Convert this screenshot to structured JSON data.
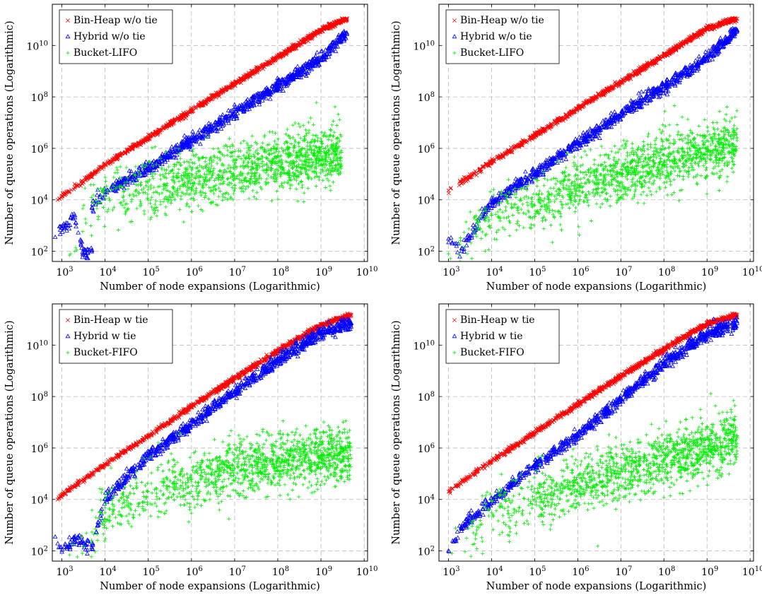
{
  "chart_data": [
    {
      "type": "scatter",
      "xlabel": "Number of node expansions (Logarithmic)",
      "ylabel": "Number of queue operations (Logarithmic)",
      "x_scale": "log",
      "y_scale": "log",
      "xlim": [
        600,
        12000000000
      ],
      "ylim": [
        40,
        400000000000
      ],
      "x_ticks": [
        3,
        4,
        5,
        6,
        7,
        8,
        9,
        10
      ],
      "y_ticks": [
        2,
        4,
        6,
        8,
        10
      ],
      "grid": true,
      "legend_position": "top-left",
      "series": [
        {
          "name": "Bin-Heap w/o tie",
          "color": "#ff0000",
          "marker": "x",
          "points": [
            [
              800,
              10000
            ],
            [
              1000,
              14000
            ],
            [
              2000,
              30000
            ],
            [
              5000,
              100000
            ],
            [
              10000,
              230000
            ],
            [
              100000,
              2600000
            ],
            [
              1000000,
              30000000
            ],
            [
              10000000,
              330000000
            ],
            [
              100000000,
              3500000000
            ],
            [
              1000000000,
              40000000000
            ],
            [
              4000000000,
              110000000000
            ]
          ]
        },
        {
          "name": "Hybrid w/o tie",
          "color": "#0000ff",
          "marker": "triangle",
          "points": [
            [
              700,
              350
            ],
            [
              1000,
              800
            ],
            [
              2000,
              2000
            ],
            [
              3000,
              90
            ],
            [
              5000,
              110
            ],
            [
              5000,
              5000
            ],
            [
              10000,
              20000
            ],
            [
              100000,
              160000
            ],
            [
              1000000,
              2100000
            ],
            [
              10000000,
              23000000
            ],
            [
              100000000,
              260000000
            ],
            [
              1000000000,
              3000000000
            ],
            [
              4000000000,
              30000000000
            ]
          ]
        },
        {
          "name": "Bucket-LIFO",
          "color": "#00ee00",
          "marker": "plus",
          "points": [
            [
              1500,
              70
            ],
            [
              2000,
              100
            ],
            [
              5000,
              8000
            ],
            [
              10000,
              15000
            ],
            [
              100000,
              25000
            ],
            [
              1000000,
              60000
            ],
            [
              10000000,
              150000
            ],
            [
              100000000,
              300000
            ],
            [
              1000000000,
              500000
            ],
            [
              3000000000,
              700000
            ]
          ]
        }
      ]
    },
    {
      "type": "scatter",
      "xlabel": "Number of node expansions (Logarithmic)",
      "ylabel": "Number of queue operations (Logarithmic)",
      "x_scale": "log",
      "y_scale": "log",
      "xlim": [
        600,
        12000000000
      ],
      "ylim": [
        40,
        400000000000
      ],
      "x_ticks": [
        3,
        4,
        5,
        6,
        7,
        8,
        9,
        10
      ],
      "y_ticks": [
        2,
        4,
        6,
        8,
        10
      ],
      "grid": true,
      "legend_position": "top-left",
      "series": [
        {
          "name": "Bin-Heap w/o tie",
          "color": "#ff0000",
          "marker": "x",
          "points": [
            [
              1000,
              23000
            ],
            [
              10000,
              300000
            ],
            [
              100000,
              3200000
            ],
            [
              1000000,
              35000000
            ],
            [
              10000000,
              380000000
            ],
            [
              100000000,
              4000000000
            ],
            [
              1000000000,
              45000000000
            ],
            [
              5000000000,
              110000000000
            ]
          ]
        },
        {
          "name": "Hybrid w/o tie",
          "color": "#0000ff",
          "marker": "triangle",
          "points": [
            [
              1000,
              300
            ],
            [
              2000,
              100
            ],
            [
              5000,
              1500
            ],
            [
              10000,
              8000
            ],
            [
              100000,
              100000
            ],
            [
              1000000,
              1500000
            ],
            [
              10000000,
              20000000
            ],
            [
              100000000,
              250000000
            ],
            [
              1000000000,
              3000000000
            ],
            [
              5000000000,
              40000000000
            ]
          ]
        },
        {
          "name": "Bucket-LIFO",
          "color": "#00ee00",
          "marker": "plus",
          "points": [
            [
              1000,
              80
            ],
            [
              5000,
              1000
            ],
            [
              10000,
              2500
            ],
            [
              100000,
              6000
            ],
            [
              1000000,
              30000
            ],
            [
              10000000,
              100000
            ],
            [
              100000000,
              300000
            ],
            [
              1000000000,
              800000
            ],
            [
              5000000000,
              2000000
            ]
          ]
        }
      ]
    },
    {
      "type": "scatter",
      "xlabel": "Number of node expansions (Logarithmic)",
      "ylabel": "Number of queue operations (Logarithmic)",
      "x_scale": "log",
      "y_scale": "log",
      "xlim": [
        600,
        12000000000
      ],
      "ylim": [
        40,
        400000000000
      ],
      "x_ticks": [
        3,
        4,
        5,
        6,
        7,
        8,
        9,
        10
      ],
      "y_ticks": [
        2,
        4,
        6,
        8,
        10
      ],
      "grid": true,
      "legend_position": "top-left",
      "series": [
        {
          "name": "Bin-Heap w tie",
          "color": "#ff0000",
          "marker": "x",
          "points": [
            [
              800,
              10000
            ],
            [
              1000,
              15000
            ],
            [
              10000,
              230000
            ],
            [
              100000,
              3000000
            ],
            [
              1000000,
              40000000
            ],
            [
              10000000,
              500000000
            ],
            [
              100000000,
              6000000000
            ],
            [
              1000000000,
              60000000000
            ],
            [
              5000000000,
              150000000000
            ]
          ]
        },
        {
          "name": "Hybrid w tie",
          "color": "#0000ff",
          "marker": "triangle",
          "points": [
            [
              700,
              350
            ],
            [
              1000,
              90
            ],
            [
              2000,
              300
            ],
            [
              5000,
              120
            ],
            [
              10000,
              10000
            ],
            [
              100000,
              500000
            ],
            [
              1000000,
              8000000
            ],
            [
              10000000,
              150000000
            ],
            [
              100000000,
              2500000000
            ],
            [
              1000000000,
              30000000000
            ],
            [
              5000000000,
              70000000000
            ]
          ]
        },
        {
          "name": "Bucket-FIFO",
          "color": "#00ee00",
          "marker": "plus",
          "points": [
            [
              1500,
              70
            ],
            [
              3000,
              80
            ],
            [
              10000,
              3000
            ],
            [
              100000,
              20000
            ],
            [
              1000000,
              50000
            ],
            [
              10000000,
              150000
            ],
            [
              100000000,
              300000
            ],
            [
              1000000000,
              500000
            ],
            [
              5000000000,
              400000
            ]
          ]
        }
      ]
    },
    {
      "type": "scatter",
      "xlabel": "Number of node expansions (Logarithmic)",
      "ylabel": "Number of queue operations (Logarithmic)",
      "x_scale": "log",
      "y_scale": "log",
      "xlim": [
        600,
        12000000000
      ],
      "ylim": [
        40,
        400000000000
      ],
      "x_ticks": [
        3,
        4,
        5,
        6,
        7,
        8,
        9,
        10
      ],
      "y_ticks": [
        2,
        4,
        6,
        8,
        10
      ],
      "grid": true,
      "legend_position": "top-left",
      "series": [
        {
          "name": "Bin-Heap w tie",
          "color": "#ff0000",
          "marker": "x",
          "points": [
            [
              1000,
              20000
            ],
            [
              10000,
              300000
            ],
            [
              100000,
              4000000
            ],
            [
              1000000,
              50000000
            ],
            [
              10000000,
              600000000
            ],
            [
              100000000,
              7000000000
            ],
            [
              1000000000,
              70000000000
            ],
            [
              5000000000,
              150000000000
            ]
          ]
        },
        {
          "name": "Hybrid w tie",
          "color": "#0000ff",
          "marker": "triangle",
          "points": [
            [
              1000,
              100
            ],
            [
              2000,
              800
            ],
            [
              10000,
              8000
            ],
            [
              100000,
              200000
            ],
            [
              1000000,
              3000000
            ],
            [
              10000000,
              80000000
            ],
            [
              100000000,
              2000000000
            ],
            [
              1000000000,
              25000000000
            ],
            [
              5000000000,
              70000000000
            ]
          ]
        },
        {
          "name": "Bucket-FIFO",
          "color": "#00ee00",
          "marker": "plus",
          "points": [
            [
              1200,
              80
            ],
            [
              5000,
              800
            ],
            [
              10000,
              3000
            ],
            [
              100000,
              10000
            ],
            [
              1000000,
              40000
            ],
            [
              10000000,
              120000
            ],
            [
              100000000,
              350000
            ],
            [
              1000000000,
              900000
            ],
            [
              5000000000,
              2500000
            ]
          ]
        }
      ]
    }
  ]
}
